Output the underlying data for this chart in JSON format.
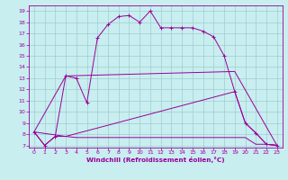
{
  "xlabel": "Windchill (Refroidissement éolien,°C)",
  "bg_color": "#c8eef0",
  "grid_color": "#a0ccd0",
  "line_color": "#990099",
  "xlim": [
    -0.5,
    23.5
  ],
  "ylim": [
    6.8,
    19.5
  ],
  "xticks": [
    0,
    1,
    2,
    3,
    4,
    5,
    6,
    7,
    8,
    9,
    10,
    11,
    12,
    13,
    14,
    15,
    16,
    17,
    18,
    19,
    20,
    21,
    22,
    23
  ],
  "yticks": [
    7,
    8,
    9,
    10,
    11,
    12,
    13,
    14,
    15,
    16,
    17,
    18,
    19
  ],
  "curve1_x": [
    0,
    1,
    2,
    3,
    4,
    5,
    6,
    7,
    8,
    9,
    10,
    11,
    12,
    13,
    14,
    15,
    16,
    17,
    18,
    19,
    20,
    21,
    22,
    23
  ],
  "curve1_y": [
    8.2,
    7.0,
    7.8,
    13.2,
    13.0,
    10.8,
    16.6,
    17.8,
    18.5,
    18.6,
    18.0,
    19.0,
    17.5,
    17.5,
    17.5,
    17.5,
    17.2,
    16.7,
    15.0,
    11.8,
    9.0,
    8.1,
    7.1,
    7.0
  ],
  "curve2_x": [
    0,
    1,
    2,
    3,
    4,
    5,
    6,
    7,
    8,
    9,
    10,
    11,
    12,
    13,
    14,
    15,
    16,
    17,
    18,
    19,
    20,
    21,
    22,
    23
  ],
  "curve2_y": [
    8.2,
    7.0,
    7.8,
    7.8,
    7.7,
    7.7,
    7.7,
    7.7,
    7.7,
    7.7,
    7.7,
    7.7,
    7.7,
    7.7,
    7.7,
    7.7,
    7.7,
    7.7,
    7.7,
    7.7,
    7.7,
    7.1,
    7.1,
    7.0
  ],
  "curve3_x": [
    0,
    3,
    19,
    20,
    21,
    22,
    23
  ],
  "curve3_y": [
    8.2,
    7.8,
    11.8,
    9.0,
    8.1,
    7.1,
    7.0
  ],
  "curve4_x": [
    0,
    3,
    19,
    23
  ],
  "curve4_y": [
    8.2,
    13.2,
    13.6,
    7.0
  ]
}
